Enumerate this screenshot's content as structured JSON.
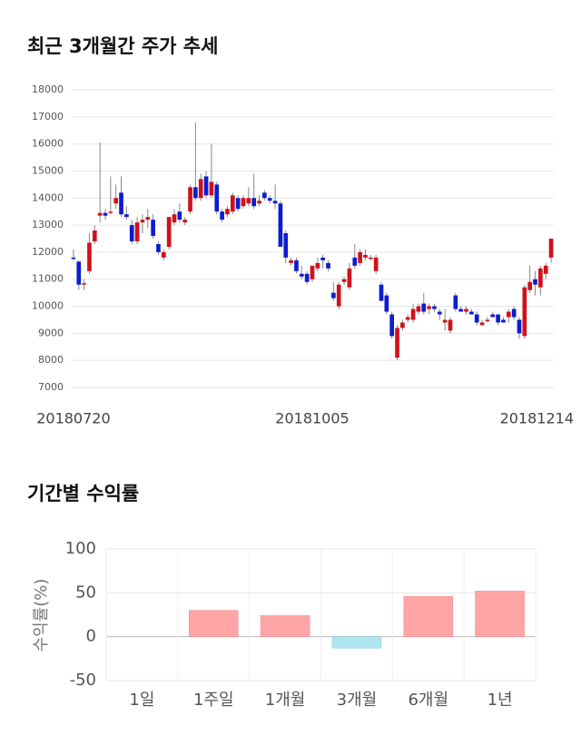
{
  "chart_data": [
    {
      "type": "candlestick",
      "title": "최근 3개월간 주가 추세",
      "categories": [
        "20180720",
        null,
        null,
        null,
        null,
        null,
        null,
        null,
        null,
        null,
        null,
        null,
        null,
        null,
        null,
        null,
        null,
        null,
        null,
        null,
        null,
        null,
        null,
        null,
        null,
        null,
        null,
        null,
        null,
        null,
        null,
        null,
        null,
        null,
        null,
        null,
        null,
        null,
        null,
        null,
        null,
        null,
        null,
        null,
        null,
        "20181005",
        null,
        null,
        null,
        null,
        null,
        null,
        null,
        null,
        null,
        null,
        null,
        null,
        null,
        null,
        null,
        null,
        null,
        null,
        null,
        null,
        null,
        null,
        null,
        null,
        null,
        null,
        null,
        null,
        null,
        null,
        null,
        null,
        null,
        null,
        null,
        null,
        null,
        null,
        null,
        null,
        null,
        null,
        null,
        null,
        "20181214"
      ],
      "open": [
        11800,
        11650,
        10850,
        11300,
        12400,
        13350,
        13450,
        13500,
        13800,
        14200,
        13400,
        13000,
        12400,
        13100,
        13200,
        13200,
        12300,
        11800,
        12200,
        13100,
        13500,
        13100,
        13500,
        14400,
        14000,
        14800,
        14100,
        14500,
        13500,
        13400,
        13500,
        14000,
        13700,
        13800,
        14000,
        13800,
        14200,
        14000,
        13900,
        13800,
        12700,
        11600,
        11700,
        11200,
        11200,
        11000,
        11400,
        11800,
        11600,
        10500,
        10000,
        10900,
        10700,
        11800,
        11600,
        11800,
        11800,
        11300,
        10800,
        10400,
        9700,
        8100,
        9200,
        9500,
        9500,
        9800,
        10100,
        9900,
        10000,
        9800,
        9400,
        9100,
        10400,
        9900,
        9800,
        9800,
        9700,
        9300,
        9500,
        9700,
        9700,
        9500,
        9600,
        9900,
        9500,
        8900,
        10600,
        11000,
        10700,
        11200,
        11800
      ],
      "high": [
        12100,
        11700,
        11000,
        12700,
        13000,
        16050,
        13600,
        14800,
        14500,
        14800,
        13700,
        13200,
        13300,
        13400,
        13600,
        13400,
        12400,
        12100,
        13300,
        13600,
        13800,
        13300,
        14500,
        16800,
        14900,
        15000,
        16000,
        14600,
        13600,
        13700,
        14200,
        14100,
        14100,
        14400,
        14900,
        14100,
        14300,
        14100,
        14500,
        13900,
        12800,
        11800,
        11800,
        11500,
        11300,
        11500,
        11800,
        11900,
        11700,
        10900,
        10900,
        11100,
        11600,
        12300,
        12100,
        12100,
        11900,
        11900,
        10900,
        10500,
        9800,
        9300,
        9500,
        9700,
        10100,
        10100,
        10500,
        10100,
        10100,
        9900,
        9900,
        9600,
        10500,
        10000,
        10000,
        9900,
        9800,
        9500,
        9600,
        9800,
        9700,
        9600,
        9900,
        10000,
        9600,
        10800,
        11500,
        11300,
        11500,
        11600,
        12500
      ],
      "low": [
        11700,
        10600,
        10600,
        11200,
        12300,
        13100,
        13200,
        13400,
        13600,
        13300,
        13200,
        12300,
        12300,
        12700,
        12900,
        12500,
        11900,
        11700,
        12100,
        13000,
        13100,
        13000,
        13400,
        13900,
        13900,
        14000,
        14000,
        13400,
        13100,
        13300,
        13400,
        13500,
        13600,
        13700,
        13600,
        13700,
        13900,
        13800,
        13600,
        12200,
        11600,
        11500,
        11200,
        11000,
        10800,
        10900,
        11300,
        11400,
        11300,
        10200,
        9900,
        10800,
        10600,
        11400,
        11500,
        11700,
        11700,
        11200,
        10200,
        9700,
        8800,
        8000,
        9100,
        9400,
        9400,
        9700,
        9700,
        9700,
        9800,
        9500,
        9100,
        9000,
        9800,
        9800,
        9700,
        9700,
        9300,
        9300,
        9400,
        9600,
        9300,
        9400,
        9400,
        9500,
        8800,
        8800,
        10500,
        10400,
        10400,
        11000,
        11600
      ],
      "close": [
        11750,
        10800,
        10850,
        12350,
        12800,
        13450,
        13350,
        13500,
        14000,
        13400,
        13300,
        12400,
        13100,
        13200,
        13300,
        12600,
        12000,
        12000,
        13300,
        13400,
        13200,
        13200,
        14400,
        14000,
        14700,
        14100,
        14600,
        13500,
        13200,
        13600,
        14100,
        13600,
        14000,
        14000,
        13700,
        13900,
        14000,
        13900,
        13800,
        12200,
        11800,
        11700,
        11300,
        11100,
        10900,
        11500,
        11600,
        11700,
        11400,
        10300,
        10800,
        11000,
        11400,
        11500,
        12000,
        11900,
        11800,
        11800,
        10200,
        9800,
        8900,
        9200,
        9400,
        9600,
        9900,
        10000,
        9800,
        10000,
        9900,
        9700,
        9500,
        9500,
        9900,
        9800,
        9900,
        9700,
        9400,
        9400,
        9500,
        9600,
        9400,
        9400,
        9800,
        9600,
        9000,
        10700,
        10900,
        10800,
        11400,
        11500,
        12500
      ],
      "up_color": "#d0111b",
      "down_color": "#0d1ccf",
      "ylim": [
        7000,
        18000
      ],
      "yticks": [
        7000,
        8000,
        9000,
        10000,
        11000,
        12000,
        13000,
        14000,
        15000,
        16000,
        17000,
        18000
      ],
      "grid": true
    },
    {
      "type": "bar",
      "title": "기간별 수익률",
      "ylabel": "수익률(%)",
      "categories": [
        "1일",
        "1주일",
        "1개월",
        "3개월",
        "6개월",
        "1년"
      ],
      "values": [
        0,
        30,
        24,
        -13,
        46,
        52
      ],
      "positive_color": "#ffa5a5",
      "negative_color": "#aee6ef",
      "ylim": [
        -50,
        100
      ],
      "yticks": [
        -50,
        0,
        50,
        100
      ],
      "grid": true
    }
  ]
}
